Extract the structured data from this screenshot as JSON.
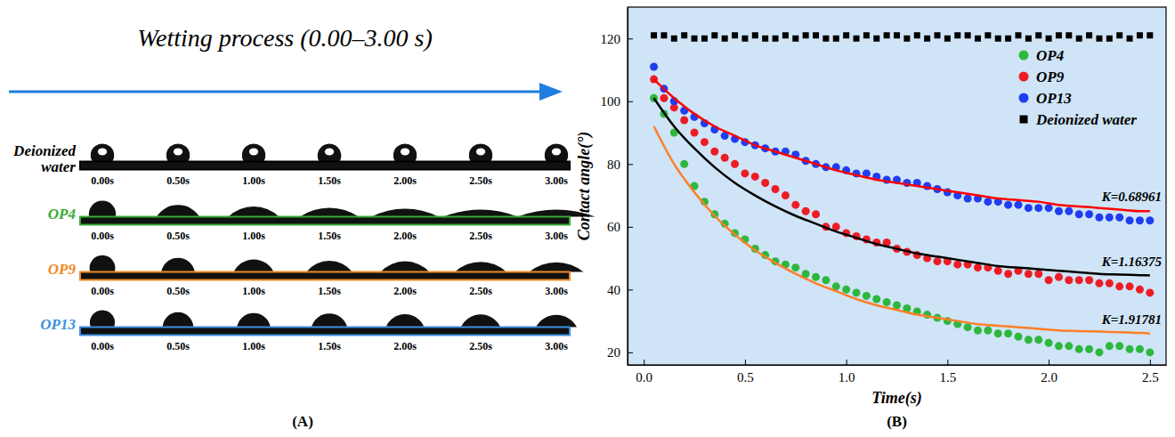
{
  "panel_a": {
    "title": "Wetting process (0.00–3.00 s)",
    "panel_label": "(A)",
    "times": [
      "0.00s",
      "0.50s",
      "1.00s",
      "1.50s",
      "2.00s",
      "2.50s",
      "3.00s"
    ],
    "rows": [
      {
        "label": "Deionized water",
        "color": "#000000"
      },
      {
        "label": "OP4",
        "color": "#3aaa35"
      },
      {
        "label": "OP9",
        "color": "#f08a24"
      },
      {
        "label": "OP13",
        "color": "#3d8fdf"
      }
    ]
  },
  "chart_data": {
    "type": "scatter",
    "panel_label": "(B)",
    "x_label": "Time(s)",
    "y_label": "Contact angle(°)",
    "xlim": [
      -0.08,
      2.58
    ],
    "xticks": [
      {
        "value": 0,
        "label": "0.0"
      },
      {
        "value": 0.5,
        "label": "0.5"
      },
      {
        "value": 1,
        "label": "1.0"
      },
      {
        "value": 1.5,
        "label": "1.5"
      },
      {
        "value": 2,
        "label": "2.0"
      },
      {
        "value": 2.5,
        "label": "2.5"
      }
    ],
    "ylim": [
      16,
      130
    ],
    "yticks": [
      20,
      40,
      60,
      80,
      100,
      120
    ],
    "grid": false,
    "legend": "upper right",
    "series": [
      {
        "name": "OP4",
        "type": "scatter",
        "marker": "circle",
        "color": "#2db83d",
        "x": [
          0.05,
          0.1,
          0.15,
          0.2,
          0.25,
          0.3,
          0.35,
          0.4,
          0.45,
          0.5,
          0.55,
          0.6,
          0.65,
          0.7,
          0.75,
          0.8,
          0.85,
          0.9,
          0.95,
          1,
          1.05,
          1.1,
          1.15,
          1.2,
          1.25,
          1.3,
          1.35,
          1.4,
          1.45,
          1.5,
          1.55,
          1.6,
          1.65,
          1.7,
          1.75,
          1.8,
          1.85,
          1.9,
          1.95,
          2,
          2.05,
          2.1,
          2.15,
          2.2,
          2.25,
          2.3,
          2.35,
          2.4,
          2.45,
          2.5
        ],
        "values": [
          101,
          96,
          90,
          80,
          73,
          68,
          64,
          61,
          58,
          56,
          53,
          51,
          49,
          48,
          47,
          45,
          44,
          43,
          41,
          40,
          39,
          38,
          37,
          36,
          35,
          34,
          33,
          32,
          31,
          30,
          29,
          28,
          27,
          27,
          26,
          26,
          25,
          24,
          24,
          23,
          22,
          22,
          21,
          21,
          20,
          22,
          22,
          21,
          21,
          20
        ]
      },
      {
        "name": "OP9",
        "type": "scatter",
        "marker": "circle",
        "color": "#ee1c25",
        "x": [
          0.05,
          0.1,
          0.15,
          0.2,
          0.25,
          0.3,
          0.35,
          0.4,
          0.45,
          0.5,
          0.55,
          0.6,
          0.65,
          0.7,
          0.75,
          0.8,
          0.85,
          0.9,
          0.95,
          1,
          1.05,
          1.1,
          1.15,
          1.2,
          1.25,
          1.3,
          1.35,
          1.4,
          1.45,
          1.5,
          1.55,
          1.6,
          1.65,
          1.7,
          1.75,
          1.8,
          1.85,
          1.9,
          1.95,
          2,
          2.05,
          2.1,
          2.15,
          2.2,
          2.25,
          2.3,
          2.35,
          2.4,
          2.45,
          2.5
        ],
        "values": [
          107,
          101,
          98,
          94,
          90,
          87,
          84,
          82,
          80,
          77,
          76,
          74,
          72,
          70,
          67,
          65,
          64,
          60,
          60,
          58,
          57,
          56,
          55,
          55,
          53,
          52,
          51,
          50,
          49,
          49,
          48,
          48,
          47,
          47,
          46,
          45,
          46,
          45,
          45,
          43,
          44,
          43,
          43,
          43,
          42,
          42,
          41,
          41,
          40,
          39
        ]
      },
      {
        "name": "OP13",
        "type": "scatter",
        "marker": "circle",
        "color": "#1f3df2",
        "x": [
          0.05,
          0.1,
          0.15,
          0.2,
          0.25,
          0.3,
          0.35,
          0.4,
          0.45,
          0.5,
          0.55,
          0.6,
          0.65,
          0.7,
          0.75,
          0.8,
          0.85,
          0.9,
          0.95,
          1,
          1.05,
          1.1,
          1.15,
          1.2,
          1.25,
          1.3,
          1.35,
          1.4,
          1.45,
          1.5,
          1.55,
          1.6,
          1.65,
          1.7,
          1.75,
          1.8,
          1.85,
          1.9,
          1.95,
          2,
          2.05,
          2.1,
          2.15,
          2.2,
          2.25,
          2.3,
          2.35,
          2.4,
          2.45,
          2.5
        ],
        "values": [
          111,
          104,
          100,
          97,
          95,
          93,
          91,
          89,
          88,
          87,
          86,
          85,
          84,
          84,
          83,
          81,
          80,
          79,
          79,
          78,
          77,
          77,
          76,
          75,
          75,
          74,
          74,
          73,
          72,
          71,
          70,
          69,
          69,
          68,
          68,
          67,
          67,
          66,
          66,
          66,
          65,
          65,
          64,
          64,
          63,
          63,
          63,
          62,
          62,
          62
        ]
      },
      {
        "name": "Deionized water",
        "type": "scatter",
        "marker": "square",
        "color": "#000000",
        "x": [
          0.05,
          0.1,
          0.15,
          0.2,
          0.25,
          0.3,
          0.35,
          0.4,
          0.45,
          0.5,
          0.55,
          0.6,
          0.65,
          0.7,
          0.75,
          0.8,
          0.85,
          0.9,
          0.95,
          1,
          1.05,
          1.1,
          1.15,
          1.2,
          1.25,
          1.3,
          1.35,
          1.4,
          1.45,
          1.5,
          1.55,
          1.6,
          1.65,
          1.7,
          1.75,
          1.8,
          1.85,
          1.9,
          1.95,
          2,
          2.05,
          2.1,
          2.15,
          2.2,
          2.25,
          2.3,
          2.35,
          2.4,
          2.45,
          2.5
        ],
        "values": [
          121,
          121,
          120,
          121,
          120,
          120,
          121,
          120,
          121,
          120,
          121,
          120,
          120,
          121,
          120,
          121,
          121,
          120,
          120,
          121,
          120,
          121,
          120,
          121,
          121,
          120,
          121,
          120,
          121,
          120,
          121,
          121,
          120,
          121,
          120,
          120,
          121,
          120,
          121,
          120,
          121,
          121,
          120,
          121,
          120,
          120,
          121,
          120,
          121,
          121
        ]
      },
      {
        "type": "line",
        "line_style": "solid",
        "color": "#ff0000",
        "label": "K=0.68961",
        "x": [
          0.05,
          0.15,
          0.25,
          0.35,
          0.45,
          0.55,
          0.65,
          0.75,
          0.85,
          0.95,
          1.05,
          1.15,
          1.25,
          1.35,
          1.45,
          1.55,
          1.65,
          1.75,
          1.85,
          1.95,
          2.05,
          2.15,
          2.25,
          2.35,
          2.45,
          2.5
        ],
        "values": [
          107,
          101,
          96,
          92,
          89,
          86,
          84,
          82,
          80,
          78,
          76.5,
          75,
          74,
          73,
          72,
          71,
          70,
          69,
          68.5,
          68,
          67,
          66.5,
          66,
          65.5,
          65,
          65
        ]
      },
      {
        "type": "line",
        "line_style": "solid",
        "color": "#000000",
        "label": "K=1.16375",
        "x": [
          0.05,
          0.15,
          0.25,
          0.35,
          0.45,
          0.55,
          0.65,
          0.75,
          0.85,
          0.95,
          1.05,
          1.15,
          1.25,
          1.35,
          1.45,
          1.55,
          1.65,
          1.75,
          1.85,
          1.95,
          2.05,
          2.15,
          2.25,
          2.35,
          2.45,
          2.5
        ],
        "values": [
          101,
          92,
          85,
          79,
          74,
          70,
          66.5,
          63.5,
          61,
          58.5,
          56.5,
          54.5,
          53,
          51.5,
          50.5,
          49.5,
          48.5,
          47.5,
          47,
          46.5,
          46,
          45.5,
          45,
          44.8,
          44.6,
          44.5
        ]
      },
      {
        "type": "line",
        "line_style": "solid",
        "color": "#ff7f27",
        "label": "K=1.91781",
        "x": [
          0.05,
          0.15,
          0.25,
          0.35,
          0.45,
          0.55,
          0.65,
          0.75,
          0.85,
          0.95,
          1.05,
          1.15,
          1.25,
          1.35,
          1.45,
          1.55,
          1.65,
          1.75,
          1.85,
          1.95,
          2.05,
          2.15,
          2.25,
          2.35,
          2.45,
          2.5
        ],
        "values": [
          92,
          80,
          71,
          63.5,
          57.5,
          52.5,
          48.5,
          45,
          42,
          39.5,
          37,
          35,
          33.5,
          32,
          31,
          30,
          29,
          28.5,
          28,
          27.5,
          27,
          26.8,
          26.6,
          26.4,
          26.2,
          26
        ]
      }
    ]
  }
}
